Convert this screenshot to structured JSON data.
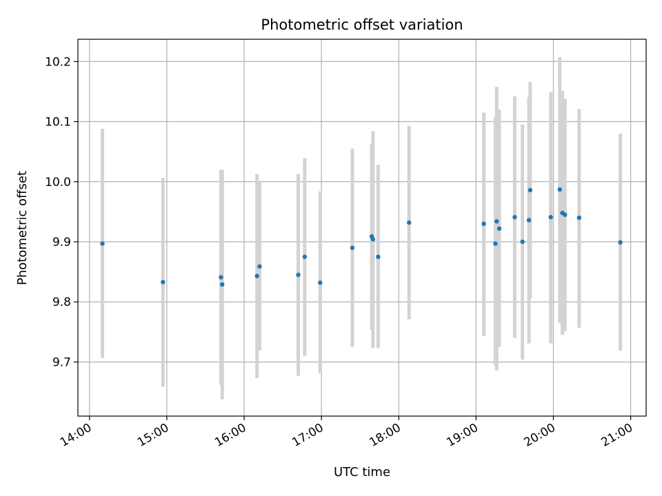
{
  "chart_data": {
    "type": "scatter",
    "title": "Photometric offset variation",
    "xlabel": "UTC time",
    "ylabel": "Photometric offset",
    "x_is_time": true,
    "x_tick_labels": [
      "14:00",
      "15:00",
      "16:00",
      "17:00",
      "18:00",
      "19:00",
      "20:00",
      "21:00"
    ],
    "y_ticks": [
      9.7,
      9.8,
      9.9,
      10.0,
      10.1,
      10.2
    ],
    "y_tick_labels": [
      "9.7",
      "9.8",
      "9.9",
      "10.0",
      "10.1",
      "10.2"
    ],
    "xlim": [
      "13:51",
      "21:12"
    ],
    "ylim": [
      9.61,
      10.237
    ],
    "grid": true,
    "colors": {
      "marker": "#1f77b4",
      "errorbar": "#d3d3d3",
      "grid": "#b0b0b0",
      "axes": "#000000"
    },
    "points": [
      {
        "x": "14:10",
        "y": 9.897,
        "ylow": 9.707,
        "yhigh": 10.088
      },
      {
        "x": "14:57",
        "y": 9.833,
        "ylow": 9.659,
        "yhigh": 10.006
      },
      {
        "x": "15:42",
        "y": 9.841,
        "ylow": 9.662,
        "yhigh": 10.02
      },
      {
        "x": "15:43",
        "y": 9.829,
        "ylow": 9.638,
        "yhigh": 10.02
      },
      {
        "x": "16:10",
        "y": 9.843,
        "ylow": 9.673,
        "yhigh": 10.013
      },
      {
        "x": "16:12",
        "y": 9.859,
        "ylow": 9.719,
        "yhigh": 9.999
      },
      {
        "x": "16:42",
        "y": 9.845,
        "ylow": 9.677,
        "yhigh": 10.013
      },
      {
        "x": "16:47",
        "y": 9.875,
        "ylow": 9.71,
        "yhigh": 10.039
      },
      {
        "x": "16:59",
        "y": 9.832,
        "ylow": 9.681,
        "yhigh": 9.984
      },
      {
        "x": "17:24",
        "y": 9.89,
        "ylow": 9.725,
        "yhigh": 10.055
      },
      {
        "x": "17:39",
        "y": 9.909,
        "ylow": 9.754,
        "yhigh": 10.063
      },
      {
        "x": "17:40",
        "y": 9.904,
        "ylow": 9.723,
        "yhigh": 10.084
      },
      {
        "x": "17:44",
        "y": 9.875,
        "ylow": 9.723,
        "yhigh": 10.028
      },
      {
        "x": "18:08",
        "y": 9.932,
        "ylow": 9.771,
        "yhigh": 10.093
      },
      {
        "x": "19:06",
        "y": 9.93,
        "ylow": 9.743,
        "yhigh": 10.115
      },
      {
        "x": "19:15",
        "y": 9.897,
        "ylow": 9.694,
        "yhigh": 10.108
      },
      {
        "x": "19:16",
        "y": 9.934,
        "ylow": 9.686,
        "yhigh": 10.158
      },
      {
        "x": "19:18",
        "y": 9.922,
        "ylow": 9.725,
        "yhigh": 10.12
      },
      {
        "x": "19:30",
        "y": 9.941,
        "ylow": 9.74,
        "yhigh": 10.142
      },
      {
        "x": "19:36",
        "y": 9.9,
        "ylow": 9.704,
        "yhigh": 10.095
      },
      {
        "x": "19:41",
        "y": 9.936,
        "ylow": 9.731,
        "yhigh": 10.141
      },
      {
        "x": "19:42",
        "y": 9.986,
        "ylow": 9.806,
        "yhigh": 10.166
      },
      {
        "x": "19:58",
        "y": 9.941,
        "ylow": 9.731,
        "yhigh": 10.149
      },
      {
        "x": "20:05",
        "y": 9.987,
        "ylow": 9.765,
        "yhigh": 10.207
      },
      {
        "x": "20:07",
        "y": 9.948,
        "ylow": 9.745,
        "yhigh": 10.151
      },
      {
        "x": "20:09",
        "y": 9.945,
        "ylow": 9.751,
        "yhigh": 10.138
      },
      {
        "x": "20:20",
        "y": 9.94,
        "ylow": 9.757,
        "yhigh": 10.121
      },
      {
        "x": "20:52",
        "y": 9.899,
        "ylow": 9.719,
        "yhigh": 10.08
      }
    ]
  }
}
